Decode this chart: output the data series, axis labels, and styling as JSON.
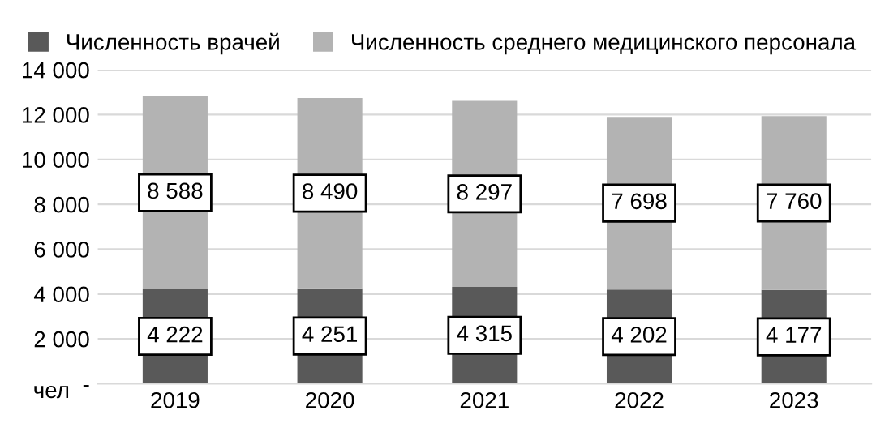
{
  "chart_data": {
    "type": "bar",
    "stacked": true,
    "categories": [
      "2019",
      "2020",
      "2021",
      "2022",
      "2023"
    ],
    "series": [
      {
        "name": "Численность врачей",
        "color": "#595959",
        "values": [
          4222,
          4251,
          4315,
          4202,
          4177
        ],
        "value_labels": [
          "4 222",
          "4 251",
          "4 315",
          "4 202",
          "4 177"
        ]
      },
      {
        "name": "Численность среднего медицинского персонала",
        "color": "#b3b3b3",
        "values": [
          8588,
          8490,
          8297,
          7698,
          7760
        ],
        "value_labels": [
          "8 588",
          "8 490",
          "8 297",
          "7 698",
          "7 760"
        ]
      }
    ],
    "ylabel": "чел",
    "ylim": [
      0,
      14000
    ],
    "yticks": [
      {
        "value": 0,
        "label": "-"
      },
      {
        "value": 2000,
        "label": "2 000"
      },
      {
        "value": 4000,
        "label": "4 000"
      },
      {
        "value": 6000,
        "label": "6 000"
      },
      {
        "value": 8000,
        "label": "8 000"
      },
      {
        "value": 10000,
        "label": "10 000"
      },
      {
        "value": 12000,
        "label": "12 000"
      },
      {
        "value": 14000,
        "label": "14 000"
      }
    ],
    "grid": "y",
    "legend": "top left"
  }
}
